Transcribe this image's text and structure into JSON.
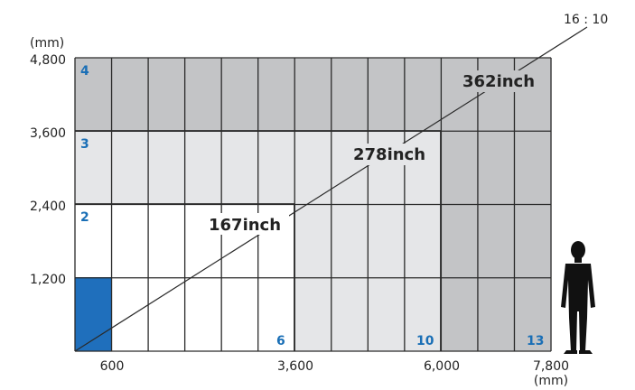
{
  "units": {
    "y_unit": "(mm)",
    "x_unit": "(mm)"
  },
  "y_ticks": [
    "4,800",
    "3,600",
    "2,400",
    "1,200"
  ],
  "x_ticks": [
    "600",
    "3,600",
    "6,000",
    "7,800"
  ],
  "panel_counts_vertical": [
    "4",
    "3",
    "2"
  ],
  "panel_counts_horizontal": [
    "6",
    "10",
    "13"
  ],
  "aspect_ratio": "16 : 10",
  "screen_sizes": [
    "167inch",
    "278inch",
    "362inch"
  ],
  "colors": {
    "highlight_blue": "#1f6fbc",
    "light_panel": "#e5e6e8",
    "medium_panel": "#d3d4d6",
    "dark_panel": "#c3c4c6",
    "grid_line": "#2a2a2a",
    "label_blue": "#1a6fb6"
  },
  "icons": {
    "person": "person-silhouette-icon"
  }
}
